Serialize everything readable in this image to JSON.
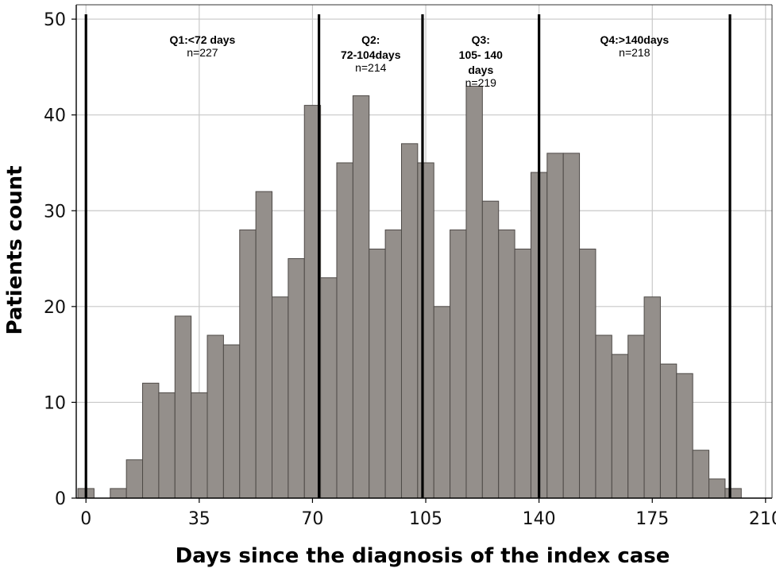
{
  "chart_data": {
    "type": "bar",
    "xlabel": "Days since the diagnosis of the index case",
    "ylabel": "Patients count",
    "xlim": [
      -3,
      212
    ],
    "ylim": [
      0,
      51.5
    ],
    "xticks": [
      0,
      35,
      70,
      105,
      140,
      175,
      210
    ],
    "yticks": [
      0,
      10,
      20,
      30,
      40,
      50
    ],
    "grid": true,
    "bin_width": 5,
    "bins": [
      {
        "x": 0,
        "count": 1
      },
      {
        "x": 10,
        "count": 1
      },
      {
        "x": 15,
        "count": 4
      },
      {
        "x": 20,
        "count": 12
      },
      {
        "x": 25,
        "count": 11
      },
      {
        "x": 30,
        "count": 19
      },
      {
        "x": 35,
        "count": 11
      },
      {
        "x": 40,
        "count": 17
      },
      {
        "x": 45,
        "count": 16
      },
      {
        "x": 50,
        "count": 28
      },
      {
        "x": 55,
        "count": 32
      },
      {
        "x": 60,
        "count": 21
      },
      {
        "x": 65,
        "count": 25
      },
      {
        "x": 70,
        "count": 41
      },
      {
        "x": 75,
        "count": 23
      },
      {
        "x": 80,
        "count": 35
      },
      {
        "x": 85,
        "count": 42
      },
      {
        "x": 90,
        "count": 26
      },
      {
        "x": 95,
        "count": 28
      },
      {
        "x": 100,
        "count": 37
      },
      {
        "x": 105,
        "count": 35
      },
      {
        "x": 110,
        "count": 20
      },
      {
        "x": 115,
        "count": 28
      },
      {
        "x": 120,
        "count": 43
      },
      {
        "x": 125,
        "count": 31
      },
      {
        "x": 130,
        "count": 28
      },
      {
        "x": 135,
        "count": 26
      },
      {
        "x": 140,
        "count": 34
      },
      {
        "x": 145,
        "count": 36
      },
      {
        "x": 150,
        "count": 36
      },
      {
        "x": 155,
        "count": 26
      },
      {
        "x": 160,
        "count": 17
      },
      {
        "x": 165,
        "count": 15
      },
      {
        "x": 170,
        "count": 17
      },
      {
        "x": 175,
        "count": 21
      },
      {
        "x": 180,
        "count": 14
      },
      {
        "x": 185,
        "count": 13
      },
      {
        "x": 190,
        "count": 5
      },
      {
        "x": 195,
        "count": 2
      },
      {
        "x": 200,
        "count": 1
      }
    ],
    "reference_lines": [
      0,
      72,
      104,
      140,
      199
    ],
    "quartiles": [
      {
        "title_lines": [
          "Q1:<72 days"
        ],
        "n": "n=227"
      },
      {
        "title_lines": [
          "Q2:",
          "72-104days"
        ],
        "n": "n=214"
      },
      {
        "title_lines": [
          "Q3:",
          "105- 140",
          "days"
        ],
        "n": "n=219"
      },
      {
        "title_lines": [
          "Q4:>140days"
        ],
        "n": "n=218"
      }
    ],
    "colors": {
      "bar_fill": "#948f8b",
      "bar_stroke": "#4e4a47",
      "grid": "#c8c8c8",
      "reference_line": "#000000"
    }
  }
}
